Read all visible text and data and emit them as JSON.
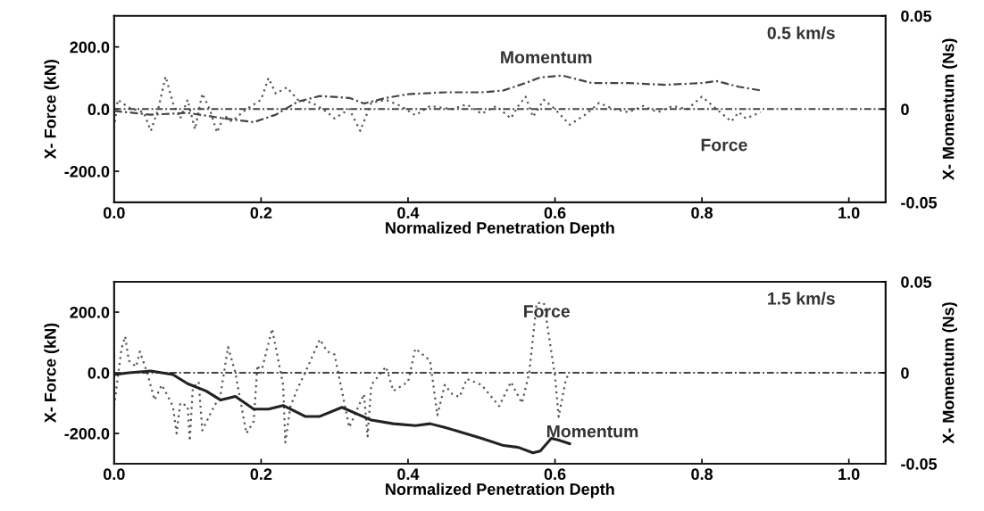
{
  "chart_data": [
    {
      "type": "line",
      "xlabel": "Normalized Penetration Depth",
      "ylabel": "X- Force (kN)",
      "y2label": "X- Momentum (Ns)",
      "xlim": [
        0,
        1.05
      ],
      "xticks": [
        {
          "value": 0,
          "label": "0.0"
        },
        {
          "value": 0.2,
          "label": "0.2"
        },
        {
          "value": 0.4,
          "label": "0.4"
        },
        {
          "value": 0.6,
          "label": "0.6"
        },
        {
          "value": 0.8,
          "label": "0.8"
        },
        {
          "value": 1.0,
          "label": "1.0"
        }
      ],
      "ylim": [
        -300,
        300
      ],
      "yticks": [
        {
          "value": -200,
          "label": "-200.0"
        },
        {
          "value": 0,
          "label": "0.0"
        },
        {
          "value": 200,
          "label": "200.0"
        }
      ],
      "y2lim": [
        -0.05,
        0.05
      ],
      "y2ticks": [
        -0.05,
        0,
        0.05
      ],
      "grid": false,
      "ref_lines": [
        {
          "axis": "y",
          "value": 0,
          "color": "#444444",
          "line_style": "dashdot"
        }
      ],
      "annotations": [
        "0.5 km/s",
        "Momentum",
        "Force"
      ],
      "series": [
        {
          "color": "#555555",
          "line_style": "dotted",
          "x": [
            0,
            0.005,
            0.02,
            0.04,
            0.05,
            0.06,
            0.07,
            0.08,
            0.09,
            0.1,
            0.11,
            0.12,
            0.13,
            0.14,
            0.15,
            0.16,
            0.17,
            0.18,
            0.2,
            0.21,
            0.22,
            0.235,
            0.25,
            0.27,
            0.29,
            0.3,
            0.32,
            0.335,
            0.35,
            0.37,
            0.39,
            0.41,
            0.43,
            0.46,
            0.48,
            0.5,
            0.52,
            0.54,
            0.55,
            0.56,
            0.57,
            0.585,
            0.6,
            0.62,
            0.64,
            0.66,
            0.68,
            0.7,
            0.72,
            0.74,
            0.76,
            0.78,
            0.8,
            0.82,
            0.84,
            0.85,
            0.86,
            0.88
          ],
          "values": [
            -60,
            30,
            5,
            -10,
            -70,
            0,
            105,
            20,
            -30,
            30,
            -65,
            50,
            0,
            -75,
            -20,
            -40,
            -20,
            0,
            30,
            100,
            50,
            70,
            30,
            20,
            -10,
            -30,
            0,
            -70,
            20,
            30,
            10,
            -20,
            10,
            0,
            15,
            -15,
            10,
            -30,
            10,
            40,
            -25,
            30,
            0,
            -50,
            -20,
            20,
            0,
            -10,
            10,
            -10,
            10,
            0,
            40,
            0,
            -40,
            -10,
            -30,
            -10
          ]
        },
        {
          "color": "#444444",
          "line_style": "dashdot",
          "axis": "y2",
          "x": [
            0,
            0.05,
            0.1,
            0.15,
            0.19,
            0.22,
            0.25,
            0.28,
            0.32,
            0.34,
            0.37,
            0.4,
            0.45,
            0.5,
            0.53,
            0.56,
            0.58,
            0.61,
            0.65,
            0.7,
            0.75,
            0.8,
            0.82,
            0.85,
            0.88
          ],
          "values": [
            -0.001,
            -0.003,
            -0.002,
            -0.005,
            -0.007,
            -0.003,
            0.004,
            0.007,
            0.006,
            0.003,
            0.006,
            0.008,
            0.009,
            0.009,
            0.01,
            0.014,
            0.017,
            0.018,
            0.014,
            0.014,
            0.013,
            0.014,
            0.015,
            0.012,
            0.01
          ]
        }
      ]
    },
    {
      "type": "line",
      "xlabel": "Normalized Penetration Depth",
      "ylabel": "X- Force (kN)",
      "y2label": "X- Momentum (Ns)",
      "xlim": [
        0,
        1.05
      ],
      "xticks": [
        {
          "value": 0,
          "label": "0.0"
        },
        {
          "value": 0.2,
          "label": "0.2"
        },
        {
          "value": 0.4,
          "label": "0.4"
        },
        {
          "value": 0.6,
          "label": "0.6"
        },
        {
          "value": 0.8,
          "label": "0.8"
        },
        {
          "value": 1.0,
          "label": "1.0"
        }
      ],
      "ylim": [
        -300,
        300
      ],
      "yticks": [
        {
          "value": -200,
          "label": "-200.0"
        },
        {
          "value": 0,
          "label": "0.0"
        },
        {
          "value": 200,
          "label": "200.0"
        }
      ],
      "y2lim": [
        -0.05,
        0.05
      ],
      "y2ticks": [
        -0.05,
        0,
        0.05
      ],
      "grid": false,
      "ref_lines": [
        {
          "axis": "y",
          "value": 0,
          "color": "#444444",
          "line_style": "dashdot"
        }
      ],
      "annotations": [
        "1.5 km/s",
        "Force",
        "Momentum"
      ],
      "series": [
        {
          "color": "#555555",
          "line_style": "dotted",
          "x": [
            0,
            0.01,
            0.015,
            0.02,
            0.03,
            0.035,
            0.045,
            0.055,
            0.065,
            0.08,
            0.085,
            0.09,
            0.1,
            0.103,
            0.107,
            0.115,
            0.12,
            0.13,
            0.145,
            0.155,
            0.165,
            0.18,
            0.19,
            0.195,
            0.2,
            0.215,
            0.23,
            0.233,
            0.24,
            0.25,
            0.26,
            0.28,
            0.29,
            0.3,
            0.32,
            0.34,
            0.345,
            0.35,
            0.37,
            0.38,
            0.4,
            0.41,
            0.43,
            0.44,
            0.45,
            0.46,
            0.47,
            0.48,
            0.5,
            0.524,
            0.54,
            0.555,
            0.565,
            0.575,
            0.585,
            0.6,
            0.605,
            0.615,
            0.62
          ],
          "values": [
            -110,
            80,
            120,
            40,
            20,
            70,
            0,
            -90,
            -40,
            -110,
            -200,
            -100,
            -110,
            -225,
            -50,
            -30,
            -190,
            -140,
            -70,
            85,
            0,
            -200,
            -160,
            25,
            0,
            145,
            -40,
            -230,
            -110,
            -50,
            0,
            110,
            70,
            60,
            -180,
            -70,
            -210,
            -40,
            20,
            -60,
            -30,
            80,
            40,
            -140,
            -40,
            -70,
            -80,
            -20,
            -40,
            -110,
            -30,
            -100,
            0,
            230,
            230,
            -10,
            -145,
            -20,
            0
          ]
        },
        {
          "color": "#222222",
          "line_style": "solid",
          "axis": "y2",
          "x": [
            0,
            0.02,
            0.05,
            0.08,
            0.1,
            0.125,
            0.145,
            0.165,
            0.19,
            0.21,
            0.23,
            0.26,
            0.28,
            0.31,
            0.35,
            0.38,
            0.41,
            0.43,
            0.45,
            0.5,
            0.53,
            0.55,
            0.57,
            0.58,
            0.595,
            0.605,
            0.62
          ],
          "values": [
            -0.001,
            0,
            0.001,
            -0.001,
            -0.006,
            -0.01,
            -0.015,
            -0.013,
            -0.02,
            -0.02,
            -0.018,
            -0.024,
            -0.024,
            -0.019,
            -0.026,
            -0.028,
            -0.029,
            -0.028,
            -0.03,
            -0.036,
            -0.04,
            -0.041,
            -0.044,
            -0.043,
            -0.036,
            -0.037,
            -0.039
          ]
        }
      ]
    }
  ]
}
